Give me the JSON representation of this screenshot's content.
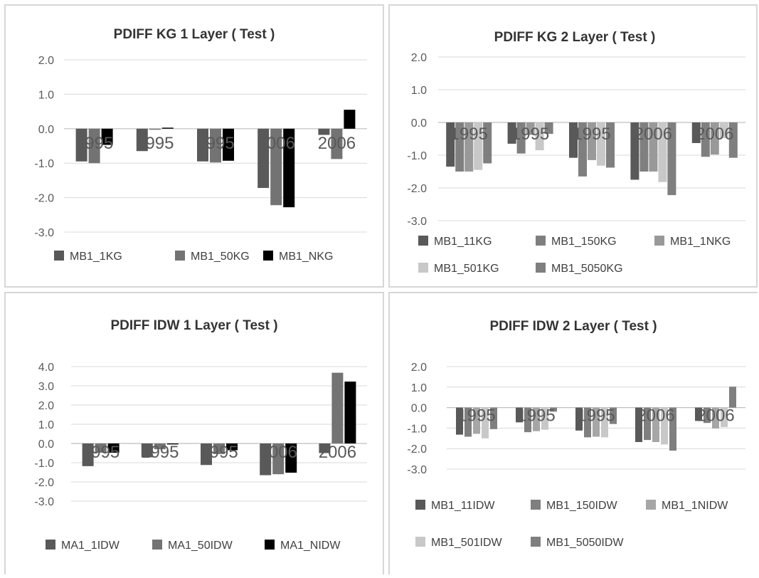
{
  "chart_data": [
    {
      "type": "bar",
      "title": "PDIFF KG 1 Layer ( Test )",
      "categories": [
        "1995",
        "1995",
        "1995",
        "2006",
        "2006"
      ],
      "ylim": [
        -3.0,
        2.0
      ],
      "yticks": [
        "2.0",
        "1.0",
        "0.0",
        "-1.0",
        "-2.0",
        "-3.0"
      ],
      "grid": true,
      "legend_position": "bottom",
      "series": [
        {
          "name": "MB1_1KG",
          "color": "#595959",
          "values": [
            -0.95,
            -0.65,
            -0.95,
            -1.72,
            -0.18
          ]
        },
        {
          "name": "MB1_50KG",
          "color": "#737373",
          "values": [
            -1.0,
            -0.03,
            -0.98,
            -2.22,
            -0.88
          ]
        },
        {
          "name": "MB1_NKG",
          "color": "#000000",
          "values": [
            -0.47,
            0.03,
            -0.93,
            -2.28,
            0.55
          ]
        }
      ]
    },
    {
      "type": "bar",
      "title": "PDIFF KG 2 Layer ( Test )",
      "categories": [
        "1995",
        "1995",
        "1995",
        "2006",
        "2006"
      ],
      "ylim": [
        -3.0,
        2.0
      ],
      "yticks": [
        "2.0",
        "1.0",
        "0.0",
        "-1.0",
        "-2.0",
        "-3.0"
      ],
      "grid": true,
      "legend_position": "bottom",
      "series": [
        {
          "name": "MB1_11KG",
          "color": "#595959",
          "values": [
            -1.35,
            -0.65,
            -1.08,
            -1.75,
            -0.63
          ]
        },
        {
          "name": "MB1_150KG",
          "color": "#7f7f7f",
          "values": [
            -1.5,
            -0.95,
            -1.65,
            -1.5,
            -1.05
          ]
        },
        {
          "name": "MB1_1NKG",
          "color": "#999999",
          "values": [
            -1.5,
            -0.38,
            -1.15,
            -1.5,
            -0.98
          ]
        },
        {
          "name": "MB1_501KG",
          "color": "#c8c8c8",
          "values": [
            -1.45,
            -0.85,
            -1.32,
            -1.82,
            -0.48
          ]
        },
        {
          "name": "MB1_5050KG",
          "color": "#7f7f7f",
          "values": [
            -1.25,
            -0.35,
            -1.38,
            -2.22,
            -1.08
          ]
        }
      ]
    },
    {
      "type": "bar",
      "title": "PDIFF  IDW 1 Layer ( Test )",
      "categories": [
        "1995",
        "1995",
        "1995",
        "2006",
        "2006"
      ],
      "ylim": [
        -3.0,
        4.0
      ],
      "yticks": [
        "4.0",
        "3.0",
        "2.0",
        "1.0",
        "0.0",
        "-1.0",
        "-2.0",
        "-3.0"
      ],
      "grid": true,
      "legend_position": "bottom",
      "series": [
        {
          "name": "MA1_1IDW",
          "color": "#595959",
          "values": [
            -1.18,
            -0.72,
            -1.12,
            -1.65,
            -0.5
          ]
        },
        {
          "name": "MA1_50IDW",
          "color": "#737373",
          "values": [
            -0.48,
            -0.3,
            -0.55,
            -1.6,
            3.68
          ]
        },
        {
          "name": "MA1_NIDW",
          "color": "#000000",
          "values": [
            -0.48,
            -0.05,
            -0.35,
            -1.52,
            3.22
          ]
        }
      ]
    },
    {
      "type": "bar",
      "title": "PDIFF IDW 2 Layer ( Test )",
      "categories": [
        "1995",
        "1995",
        "1995",
        "2006",
        "2006"
      ],
      "ylim": [
        -3.0,
        2.0
      ],
      "yticks": [
        "2.0",
        "1.0",
        "0.0",
        "-1.0",
        "-2.0",
        "-3.0"
      ],
      "grid": true,
      "legend_position": "bottom",
      "series": [
        {
          "name": "MB1_11IDW",
          "color": "#595959",
          "values": [
            -1.32,
            -0.72,
            -1.12,
            -1.68,
            -0.65
          ]
        },
        {
          "name": "MB1_150IDW",
          "color": "#7f7f7f",
          "values": [
            -1.42,
            -1.2,
            -1.45,
            -1.58,
            -0.75
          ]
        },
        {
          "name": "MB1_1NIDW",
          "color": "#a6a6a6",
          "values": [
            -1.28,
            -1.15,
            -1.42,
            -1.68,
            -1.02
          ]
        },
        {
          "name": "MB1_501IDW",
          "color": "#c8c8c8",
          "values": [
            -1.5,
            -1.08,
            -1.45,
            -1.8,
            -0.95
          ]
        },
        {
          "name": "MB1_5050IDW",
          "color": "#7f7f7f",
          "values": [
            -1.05,
            -0.2,
            -0.8,
            -2.1,
            1.02
          ]
        }
      ]
    }
  ]
}
